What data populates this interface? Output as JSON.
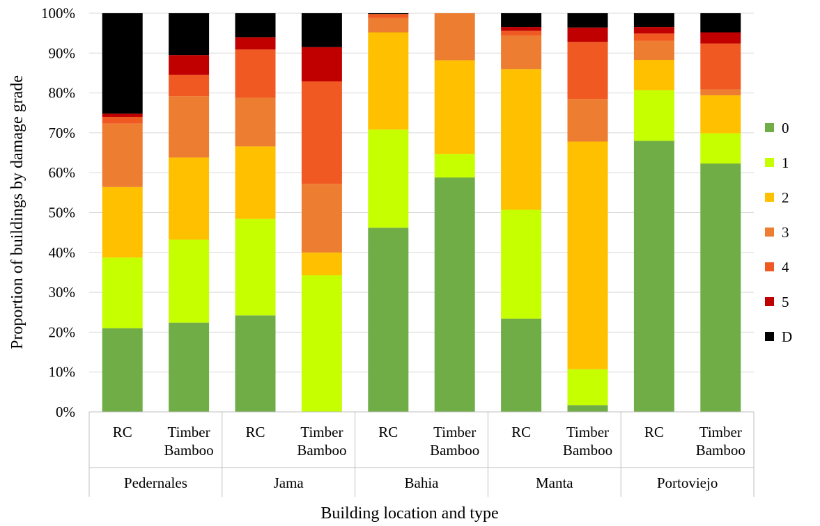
{
  "chart_data": {
    "type": "bar",
    "stacked": true,
    "xlabel": "Building location and type",
    "ylabel": "Proportion of buildings by damage grade",
    "ylim": [
      0,
      100
    ],
    "y_tick_labels": [
      "0%",
      "10%",
      "20%",
      "30%",
      "40%",
      "50%",
      "60%",
      "70%",
      "80%",
      "90%",
      "100%"
    ],
    "grid": true,
    "legend_position": "right",
    "groups": [
      {
        "label": "Pedernales",
        "types": [
          "RC",
          "Timber Bamboo"
        ]
      },
      {
        "label": "Jama",
        "types": [
          "RC",
          "Timber Bamboo"
        ]
      },
      {
        "label": "Bahia",
        "types": [
          "RC",
          "Timber Bamboo"
        ]
      },
      {
        "label": "Manta",
        "types": [
          "RC",
          "Timber Bamboo"
        ]
      },
      {
        "label": "Portoviejo",
        "types": [
          "RC",
          "Timber Bamboo"
        ]
      }
    ],
    "type_labels": {
      "RC": [
        "RC"
      ],
      "Timber Bamboo": [
        "Timber",
        "Bamboo"
      ]
    },
    "categories": [
      "Pedernales RC",
      "Pedernales Timber Bamboo",
      "Jama RC",
      "Jama Timber Bamboo",
      "Bahia RC",
      "Bahia Timber Bamboo",
      "Manta RC",
      "Manta Timber Bamboo",
      "Portoviejo RC",
      "Portoviejo Timber Bamboo"
    ],
    "series": [
      {
        "name": "0",
        "color": "#70ad47",
        "values": [
          21.0,
          22.4,
          24.2,
          0.0,
          46.2,
          58.8,
          23.4,
          1.7,
          68.0,
          62.3
        ]
      },
      {
        "name": "1",
        "color": "#c6ff00",
        "values": [
          17.7,
          20.8,
          24.2,
          34.3,
          24.6,
          5.9,
          27.3,
          9.0,
          12.7,
          7.6
        ]
      },
      {
        "name": "2",
        "color": "#ffc000",
        "values": [
          17.7,
          20.6,
          18.2,
          5.7,
          24.4,
          23.5,
          35.3,
          57.1,
          7.6,
          9.5
        ]
      },
      {
        "name": "3",
        "color": "#ed7d31",
        "values": [
          15.9,
          15.4,
          12.2,
          17.2,
          3.6,
          11.8,
          8.4,
          10.7,
          4.8,
          1.5
        ]
      },
      {
        "name": "4",
        "color": "#f05a22",
        "values": [
          1.7,
          5.3,
          12.1,
          25.7,
          1.0,
          0.0,
          1.2,
          14.3,
          1.8,
          11.5
        ]
      },
      {
        "name": "5",
        "color": "#c00000",
        "values": [
          0.8,
          5.0,
          3.1,
          8.6,
          0.0,
          0.0,
          0.9,
          3.6,
          1.6,
          2.8
        ]
      },
      {
        "name": "D",
        "color": "#000000",
        "values": [
          25.2,
          10.5,
          6.0,
          8.5,
          0.2,
          0.0,
          3.5,
          3.6,
          3.5,
          4.8
        ]
      }
    ]
  }
}
